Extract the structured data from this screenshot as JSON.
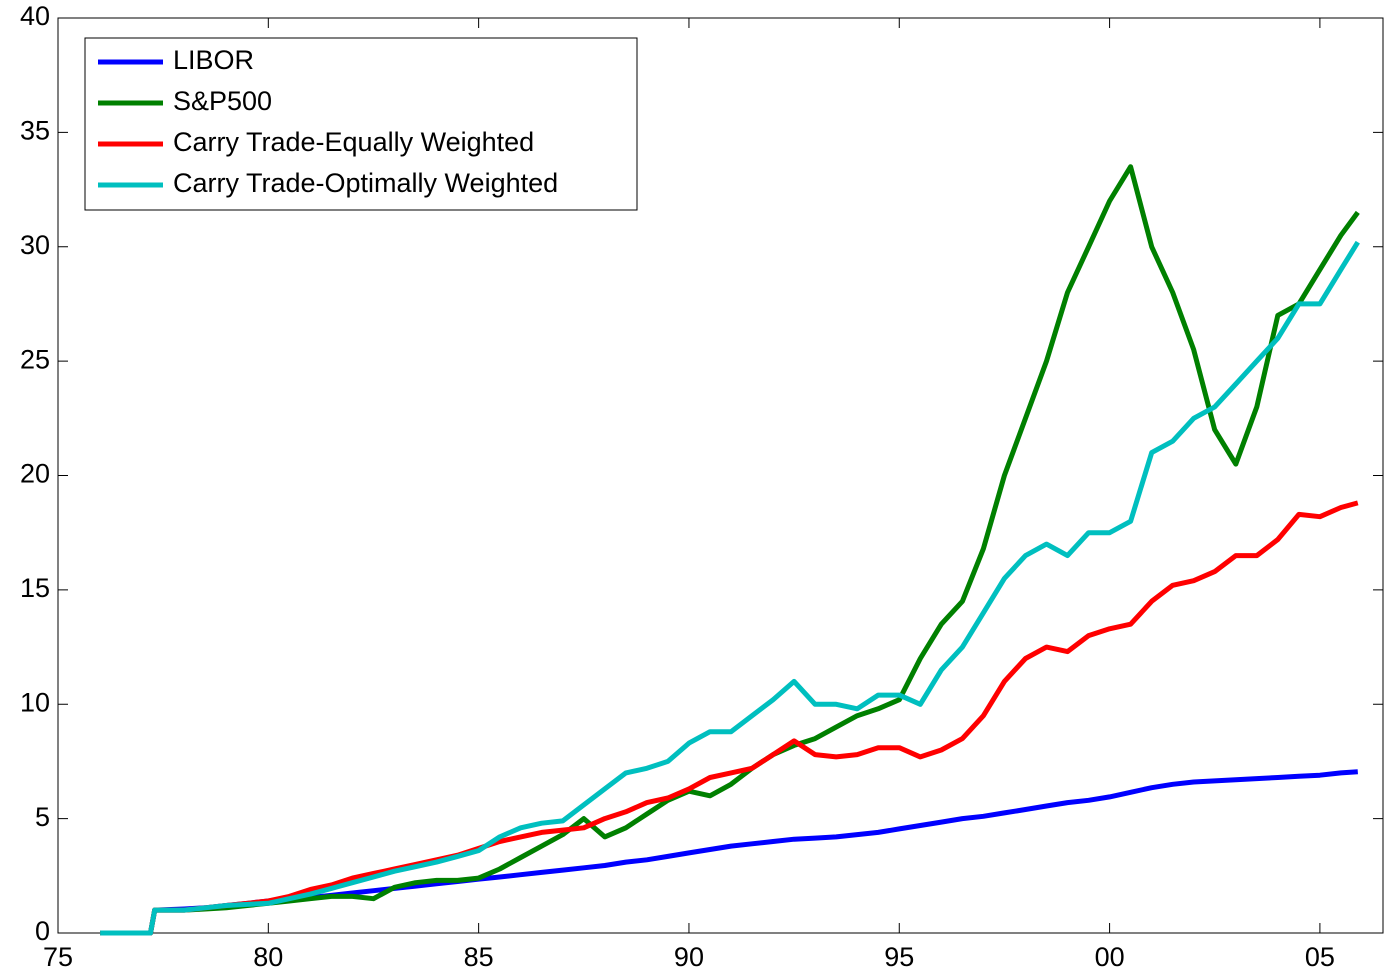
{
  "chart_data": {
    "type": "line",
    "x": [
      1976,
      1977.2,
      1977.3,
      1978,
      1978.5,
      1979,
      1979.5,
      1980,
      1980.5,
      1981,
      1981.5,
      1982,
      1982.5,
      1983,
      1983.5,
      1984,
      1984.5,
      1985,
      1985.5,
      1986,
      1986.5,
      1987,
      1987.5,
      1988,
      1988.5,
      1989,
      1989.5,
      1990,
      1990.5,
      1991,
      1991.5,
      1992,
      1992.5,
      1993,
      1993.5,
      1994,
      1994.5,
      1995,
      1995.5,
      1996,
      1996.5,
      1997,
      1997.5,
      1998,
      1998.5,
      1999,
      1999.5,
      2000,
      2000.5,
      2001,
      2001.5,
      2002,
      2002.5,
      2003,
      2003.5,
      2004,
      2004.5,
      2005,
      2005.5,
      2005.9
    ],
    "series": [
      {
        "name": "LIBOR",
        "color": "#0000ff",
        "values": [
          0,
          0,
          1,
          1.05,
          1.1,
          1.2,
          1.3,
          1.4,
          1.5,
          1.55,
          1.65,
          1.75,
          1.85,
          1.95,
          2.05,
          2.15,
          2.25,
          2.35,
          2.45,
          2.55,
          2.65,
          2.75,
          2.85,
          2.95,
          3.1,
          3.2,
          3.35,
          3.5,
          3.65,
          3.8,
          3.9,
          4.0,
          4.1,
          4.15,
          4.2,
          4.3,
          4.4,
          4.55,
          4.7,
          4.85,
          5.0,
          5.1,
          5.25,
          5.4,
          5.55,
          5.7,
          5.8,
          5.95,
          6.15,
          6.35,
          6.5,
          6.6,
          6.65,
          6.7,
          6.75,
          6.8,
          6.85,
          6.9,
          7.0,
          7.05
        ]
      },
      {
        "name": "S&P500",
        "color": "#008000",
        "values": [
          0,
          0,
          1,
          1.0,
          1.05,
          1.1,
          1.2,
          1.3,
          1.4,
          1.5,
          1.6,
          1.6,
          1.5,
          2.0,
          2.2,
          2.3,
          2.3,
          2.4,
          2.8,
          3.3,
          3.8,
          4.3,
          5.0,
          4.2,
          4.6,
          5.2,
          5.8,
          6.2,
          6.0,
          6.5,
          7.2,
          7.8,
          8.2,
          8.5,
          9.0,
          9.5,
          9.8,
          10.2,
          12.0,
          13.5,
          14.5,
          16.8,
          20,
          22.5,
          25,
          28,
          30,
          32,
          33.5,
          30,
          28,
          25.5,
          22,
          20.5,
          23,
          27,
          27.5,
          29,
          30.5,
          31.5
        ]
      },
      {
        "name": "Carry Trade-Equally Weighted",
        "color": "#ff0000",
        "values": [
          0,
          0,
          1,
          1.0,
          1.1,
          1.2,
          1.3,
          1.4,
          1.6,
          1.9,
          2.1,
          2.4,
          2.6,
          2.8,
          3.0,
          3.2,
          3.4,
          3.7,
          4.0,
          4.2,
          4.4,
          4.5,
          4.6,
          5.0,
          5.3,
          5.7,
          5.9,
          6.3,
          6.8,
          7.0,
          7.2,
          7.8,
          8.4,
          7.8,
          7.7,
          7.8,
          8.1,
          8.1,
          7.7,
          8.0,
          8.5,
          9.5,
          11,
          12,
          12.5,
          12.3,
          13,
          13.3,
          13.5,
          14.5,
          15.2,
          15.4,
          15.8,
          16.5,
          16.5,
          17.2,
          18.3,
          18.2,
          18.6,
          18.8
        ]
      },
      {
        "name": "Carry Trade-Optimally Weighted",
        "color": "#00bfbf",
        "values": [
          0,
          0,
          1,
          1.0,
          1.1,
          1.2,
          1.25,
          1.3,
          1.5,
          1.7,
          1.95,
          2.2,
          2.45,
          2.7,
          2.9,
          3.1,
          3.35,
          3.6,
          4.2,
          4.6,
          4.8,
          4.9,
          5.6,
          6.3,
          7.0,
          7.2,
          7.5,
          8.3,
          8.8,
          8.8,
          9.5,
          10.2,
          11.0,
          10.0,
          10.0,
          9.8,
          10.4,
          10.4,
          10.0,
          11.5,
          12.5,
          14,
          15.5,
          16.5,
          17,
          16.5,
          17.5,
          17.5,
          18,
          21,
          21.5,
          22.5,
          23,
          24,
          25,
          26,
          27.5,
          27.5,
          29,
          30.2
        ]
      }
    ],
    "xlim": [
      1975,
      2006.5
    ],
    "xticks": [
      {
        "value": 1975,
        "label": "75"
      },
      {
        "value": 1980,
        "label": "80"
      },
      {
        "value": 1985,
        "label": "85"
      },
      {
        "value": 1990,
        "label": "90"
      },
      {
        "value": 1995,
        "label": "95"
      },
      {
        "value": 2000,
        "label": "00"
      },
      {
        "value": 2005,
        "label": "05"
      }
    ],
    "ylim": [
      0,
      40
    ],
    "yticks": [
      0,
      5,
      10,
      15,
      20,
      25,
      30,
      35,
      40
    ],
    "legend": "top-left"
  }
}
